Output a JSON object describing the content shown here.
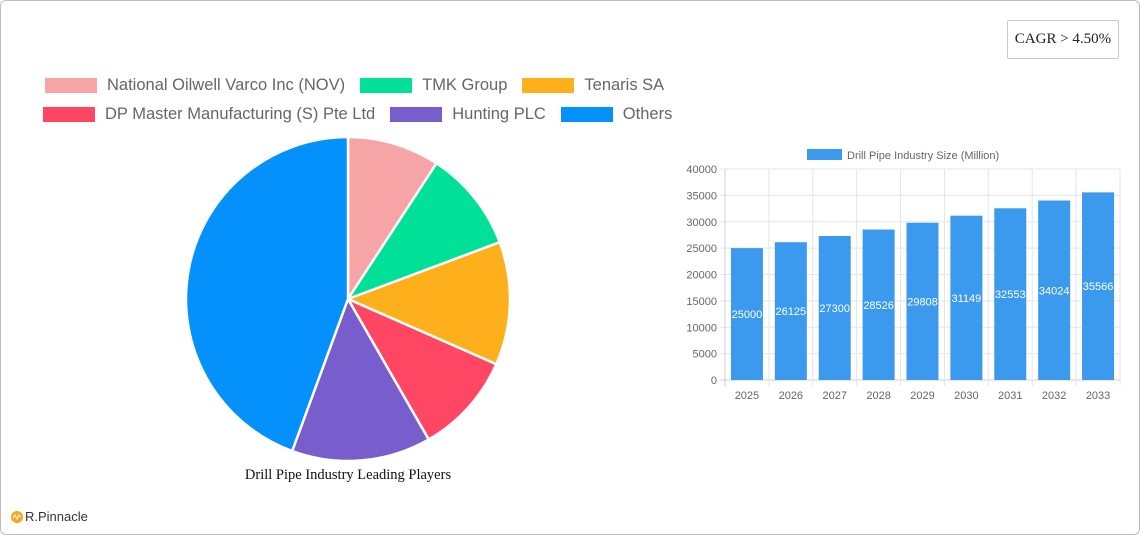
{
  "badge": {
    "cagr": "CAGR > 4.50%"
  },
  "pie": {
    "title": "Drill Pipe Industry Leading Players",
    "legend": [
      {
        "label": "National Oilwell Varco Inc  (NOV)",
        "color": "#f7a4a7"
      },
      {
        "label": "TMK Group",
        "color": "#00e096"
      },
      {
        "label": "Tenaris SA",
        "color": "#fdb01b"
      },
      {
        "label": "DP Master Manufacturing (S) Pte Ltd",
        "color": "#ff4763"
      },
      {
        "label": "Hunting PLC",
        "color": "#785ecd"
      },
      {
        "label": "Others",
        "color": "#0591fb"
      }
    ]
  },
  "bar": {
    "legend_label": "Drill Pipe Industry Size (Million)",
    "color": "#3b9aee"
  },
  "logo": {
    "text": "R.Pinnacle"
  },
  "chart_data": [
    {
      "type": "pie",
      "title": "Drill Pipe Industry Leading Players",
      "categories": [
        "National Oilwell Varco Inc  (NOV)",
        "TMK Group",
        "Tenaris SA",
        "DP Master Manufacturing (S) Pte Ltd",
        "Hunting PLC",
        "Others"
      ],
      "values": [
        9.2,
        10.1,
        12.3,
        10.1,
        13.9,
        44.4
      ],
      "colors": [
        "#f7a4a7",
        "#00e096",
        "#fdb01b",
        "#ff4763",
        "#785ecd",
        "#0591fb"
      ],
      "legend_position": "top",
      "start_angle": "top, clockwise"
    },
    {
      "type": "bar",
      "title": "",
      "series": [
        {
          "name": "Drill Pipe Industry Size (Million)",
          "values": [
            25000,
            26125,
            27300,
            28526,
            29808,
            31149,
            32553,
            34024,
            35566
          ]
        }
      ],
      "categories": [
        "2025",
        "2026",
        "2027",
        "2028",
        "2029",
        "2030",
        "2031",
        "2032",
        "2033"
      ],
      "xlabel": "",
      "ylabel": "",
      "ylim": [
        0,
        40000
      ],
      "yticks": [
        0,
        5000,
        10000,
        15000,
        20000,
        25000,
        30000,
        35000,
        40000
      ],
      "grid": true,
      "legend_position": "top",
      "data_labels": true
    }
  ]
}
